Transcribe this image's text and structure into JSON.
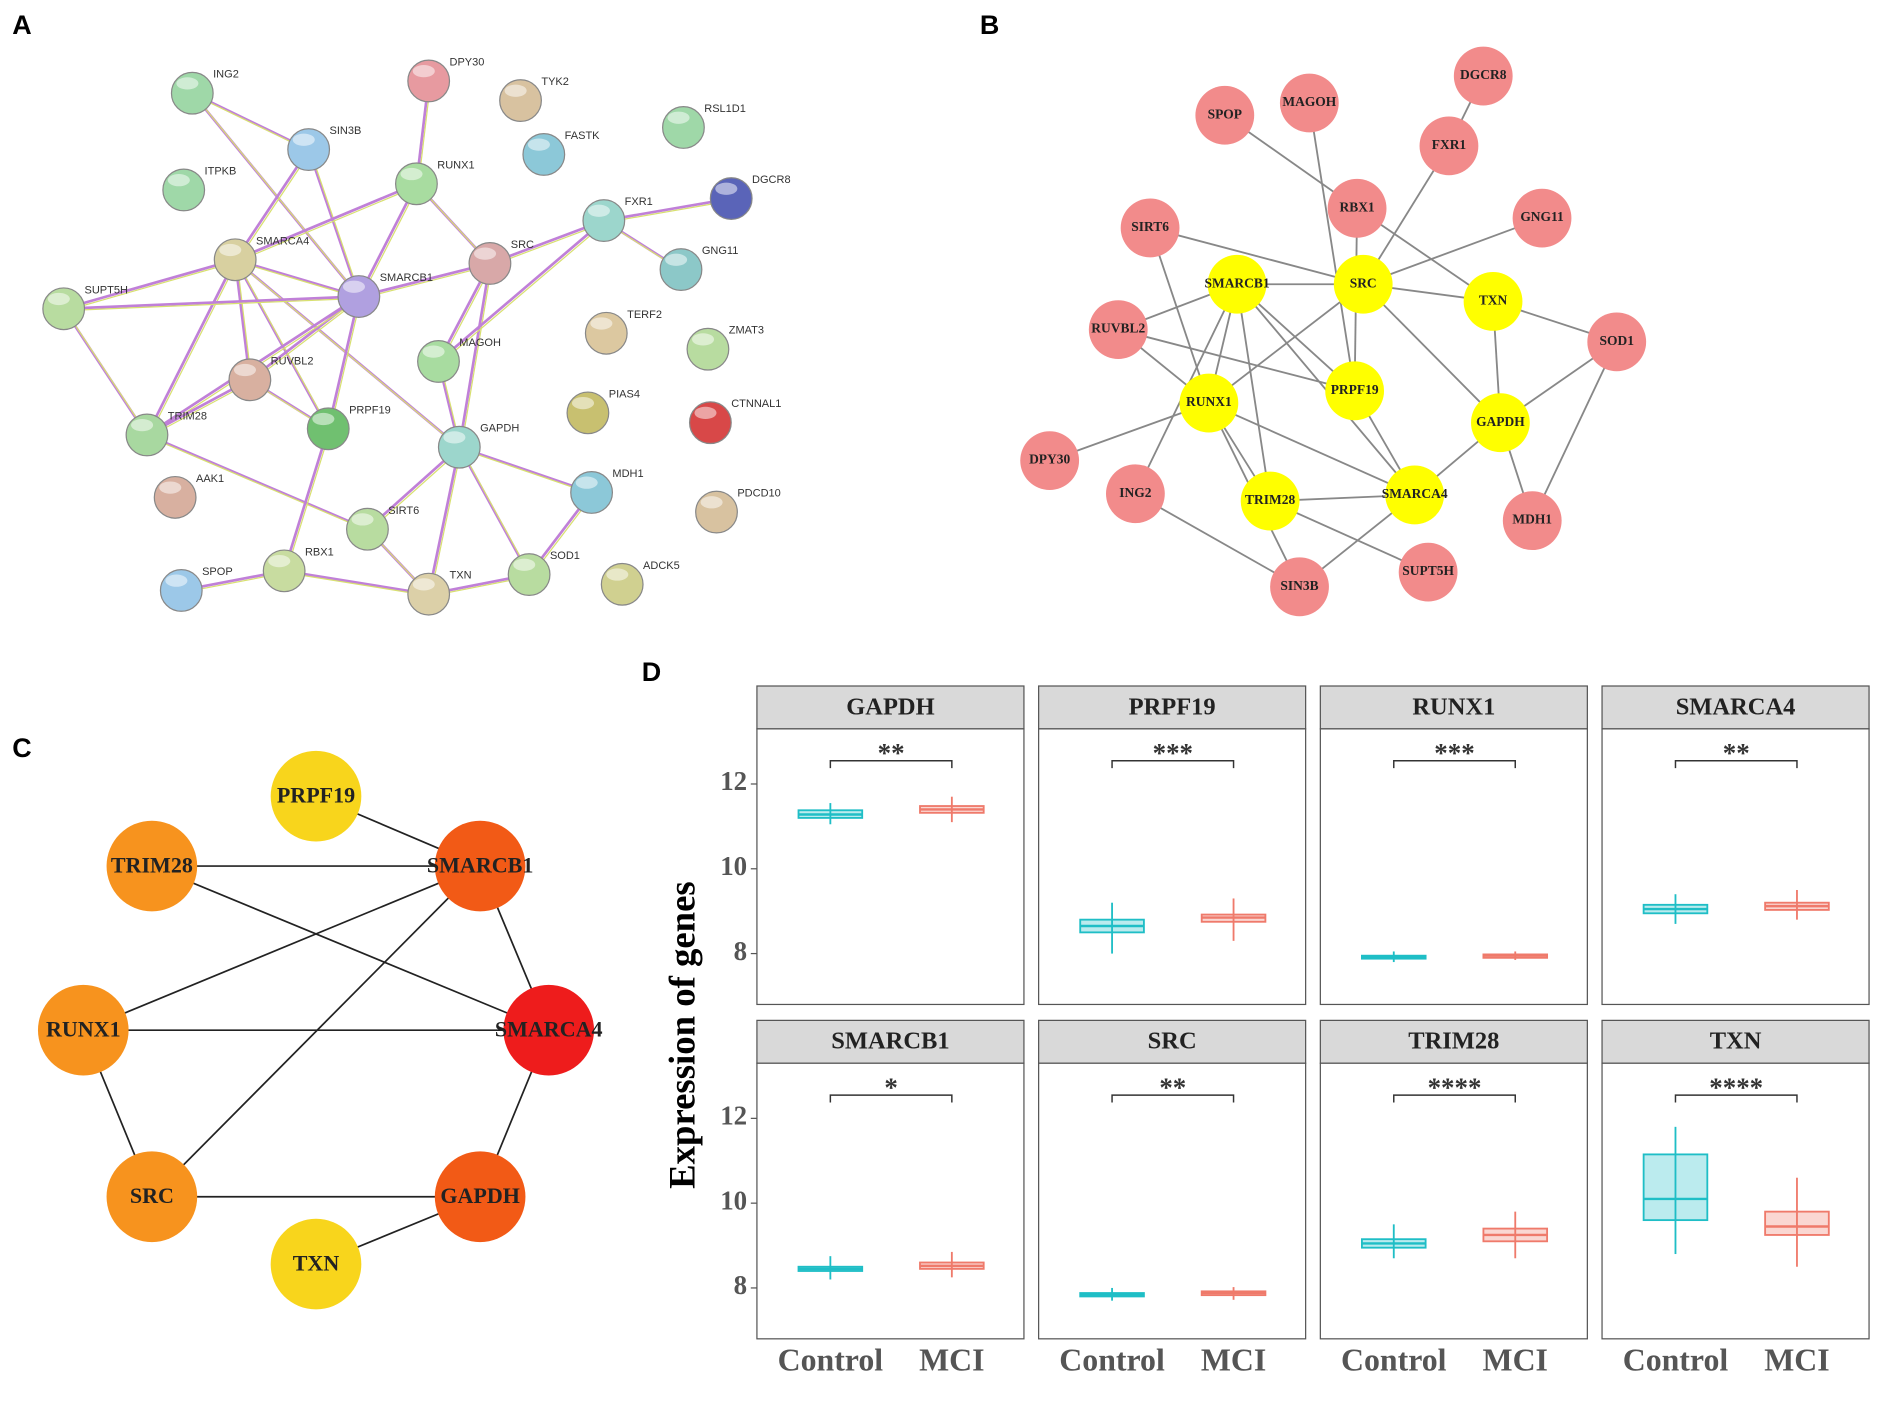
{
  "panel_labels": [
    "A",
    "B",
    "C",
    "D"
  ],
  "network_a": {
    "nodes": [
      "ING2",
      "DPY30",
      "TYK2",
      "RSL1D1",
      "SIN3B",
      "FASTK",
      "ITPKB",
      "RUNX1",
      "DGCR8",
      "FXR1",
      "SMARCA4",
      "SRC",
      "GNG11",
      "SMARCB1",
      "SUPT5H",
      "TERF2",
      "ZMAT3",
      "MAGOH",
      "RUVBL2",
      "PRPF19",
      "PIAS4",
      "CTNNAL1",
      "TRIM28",
      "GAPDH",
      "MDH1",
      "AAK1",
      "PDCD10",
      "SIRT6",
      "RBX1",
      "SPOP",
      "TXN",
      "SOD1",
      "ADCK5"
    ]
  },
  "network_b": {
    "nodes": [
      "SPOP",
      "MAGOH",
      "DGCR8",
      "FXR1",
      "RBX1",
      "SIRT6",
      "GNG11",
      "SMARCB1",
      "SRC",
      "TXN",
      "RUVBL2",
      "SOD1",
      "PRPF19",
      "RUNX1",
      "GAPDH",
      "DPY30",
      "ING2",
      "TRIM28",
      "SMARCA4",
      "MDH1",
      "SIN3B",
      "SUPT5H"
    ]
  },
  "network_c": {
    "nodes": [
      "PRPF19",
      "TRIM28",
      "SMARCB1",
      "RUNX1",
      "SMARCA4",
      "SRC",
      "GAPDH",
      "TXN"
    ]
  },
  "y_label": "Expression of genes",
  "chart_data": [
    {
      "type": "box",
      "title": "GAPDH",
      "significance": "**",
      "colors": [
        "#1fbec6",
        "#ef7a6b"
      ],
      "ylim": [
        6.8,
        13.3
      ],
      "yticks": [
        8,
        10,
        12
      ],
      "whisker_low": [
        11.05,
        11.1
      ],
      "q1": [
        11.2,
        11.32
      ],
      "median": [
        11.28,
        11.4
      ],
      "q3": [
        11.38,
        11.48
      ],
      "whisker_high": [
        11.55,
        11.7
      ]
    },
    {
      "type": "box",
      "title": "PRPF19",
      "significance": "***",
      "colors": [
        "#1fbec6",
        "#ef7a6b"
      ],
      "ylim": [
        6.8,
        13.3
      ],
      "whisker_low": [
        8.0,
        8.3
      ],
      "q1": [
        8.5,
        8.75
      ],
      "median": [
        8.65,
        8.85
      ],
      "q3": [
        8.8,
        8.92
      ],
      "whisker_high": [
        9.2,
        9.3
      ]
    },
    {
      "type": "box",
      "title": "RUNX1",
      "significance": "***",
      "colors": [
        "#1fbec6",
        "#ef7a6b"
      ],
      "ylim": [
        6.8,
        13.3
      ],
      "whisker_low": [
        7.8,
        7.85
      ],
      "q1": [
        7.88,
        7.9
      ],
      "median": [
        7.92,
        7.95
      ],
      "q3": [
        7.95,
        7.98
      ],
      "whisker_high": [
        8.05,
        8.05
      ]
    },
    {
      "type": "box",
      "title": "SMARCA4",
      "significance": "**",
      "colors": [
        "#1fbec6",
        "#ef7a6b"
      ],
      "ylim": [
        6.8,
        13.3
      ],
      "whisker_low": [
        8.7,
        8.8
      ],
      "q1": [
        8.95,
        9.03
      ],
      "median": [
        9.05,
        9.12
      ],
      "q3": [
        9.15,
        9.2
      ],
      "whisker_high": [
        9.4,
        9.5
      ]
    },
    {
      "type": "box",
      "title": "SMARCB1",
      "significance": "*",
      "colors": [
        "#1fbec6",
        "#ef7a6b"
      ],
      "ylim": [
        6.8,
        13.3
      ],
      "yticks": [
        8,
        10,
        12
      ],
      "categories": [
        "Control",
        "MCI"
      ],
      "whisker_low": [
        8.2,
        8.25
      ],
      "q1": [
        8.4,
        8.45
      ],
      "median": [
        8.45,
        8.52
      ],
      "q3": [
        8.5,
        8.6
      ],
      "whisker_high": [
        8.75,
        8.85
      ]
    },
    {
      "type": "box",
      "title": "SRC",
      "significance": "**",
      "colors": [
        "#1fbec6",
        "#ef7a6b"
      ],
      "ylim": [
        6.8,
        13.3
      ],
      "categories": [
        "Control",
        "MCI"
      ],
      "whisker_low": [
        7.7,
        7.72
      ],
      "q1": [
        7.8,
        7.83
      ],
      "median": [
        7.85,
        7.88
      ],
      "q3": [
        7.88,
        7.92
      ],
      "whisker_high": [
        8.0,
        8.02
      ]
    },
    {
      "type": "box",
      "title": "TRIM28",
      "significance": "****",
      "colors": [
        "#1fbec6",
        "#ef7a6b"
      ],
      "ylim": [
        6.8,
        13.3
      ],
      "categories": [
        "Control",
        "MCI"
      ],
      "whisker_low": [
        8.7,
        8.7
      ],
      "q1": [
        8.95,
        9.1
      ],
      "median": [
        9.05,
        9.25
      ],
      "q3": [
        9.15,
        9.4
      ],
      "whisker_high": [
        9.5,
        9.8
      ]
    },
    {
      "type": "box",
      "title": "TXN",
      "significance": "****",
      "colors": [
        "#1fbec6",
        "#ef7a6b"
      ],
      "ylim": [
        6.8,
        13.3
      ],
      "categories": [
        "Control",
        "MCI"
      ],
      "whisker_low": [
        8.8,
        8.5
      ],
      "q1": [
        9.6,
        9.25
      ],
      "median": [
        10.1,
        9.45
      ],
      "q3": [
        11.15,
        9.8
      ],
      "whisker_high": [
        11.8,
        10.6
      ]
    }
  ]
}
